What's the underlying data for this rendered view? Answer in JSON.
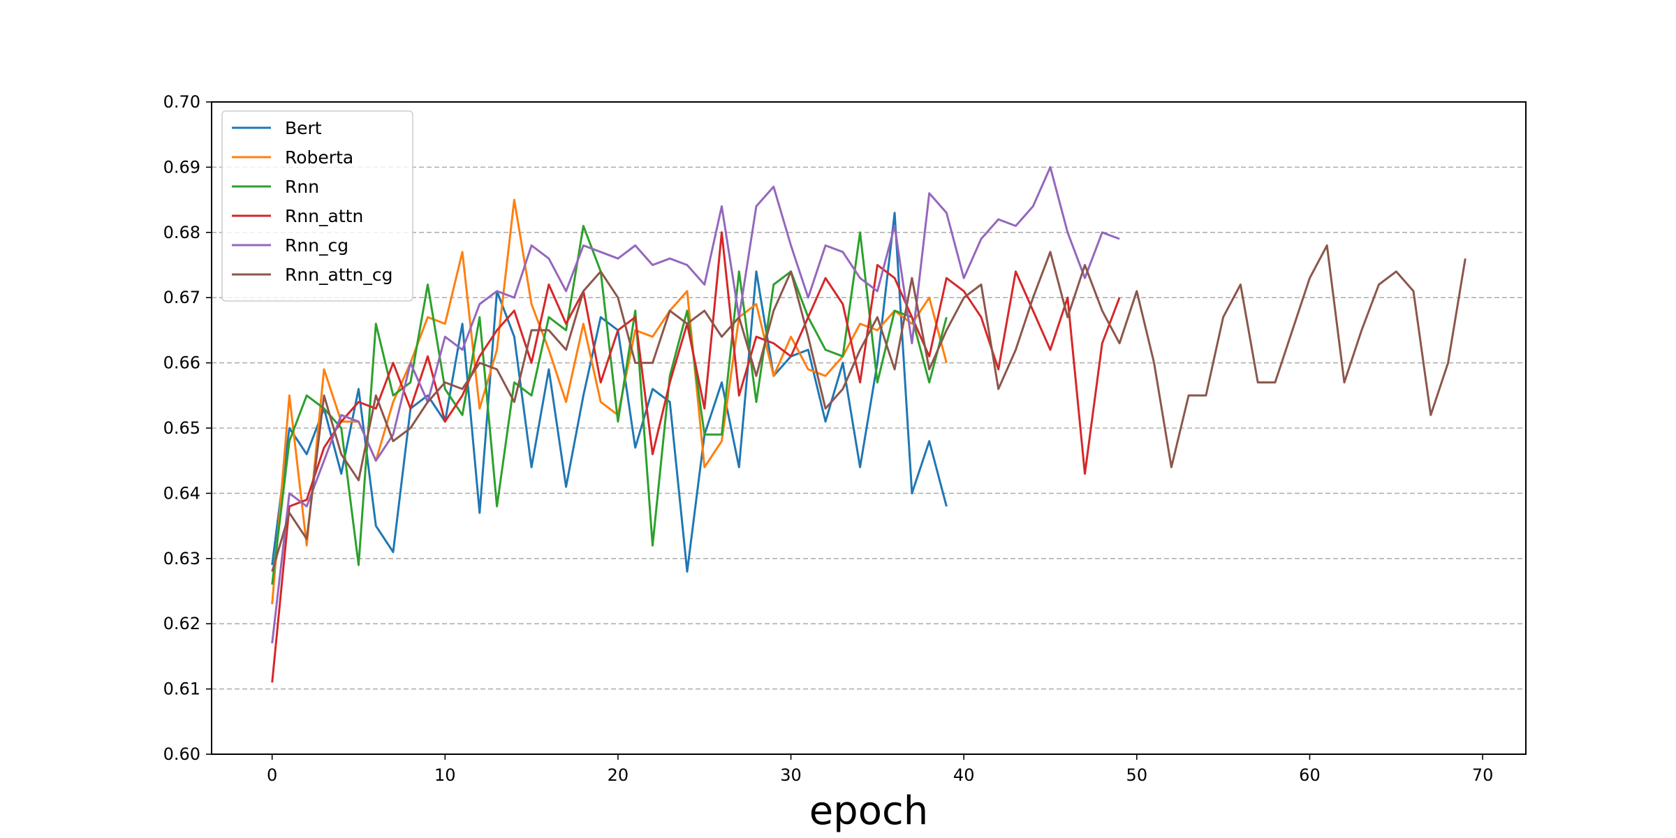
{
  "chart_data": {
    "type": "line",
    "title": "",
    "xlabel": "epoch",
    "ylabel": "",
    "xlim": [
      -3.5,
      72.5
    ],
    "ylim": [
      0.6,
      0.7
    ],
    "xticks": [
      0,
      10,
      20,
      30,
      40,
      50,
      60,
      70
    ],
    "yticks": [
      0.6,
      0.61,
      0.62,
      0.63,
      0.64,
      0.65,
      0.66,
      0.67,
      0.68,
      0.69,
      0.7
    ],
    "grid": "horizontal dashed",
    "legend_position": "top-left",
    "series": [
      {
        "name": "Bert",
        "color": "#1f77b4",
        "values": [
          0.629,
          0.65,
          0.646,
          0.653,
          0.643,
          0.656,
          0.635,
          0.631,
          0.653,
          0.655,
          0.651,
          0.666,
          0.637,
          0.671,
          0.664,
          0.644,
          0.659,
          0.641,
          0.655,
          0.667,
          0.665,
          0.647,
          0.656,
          0.654,
          0.628,
          0.649,
          0.657,
          0.644,
          0.674,
          0.658,
          0.661,
          0.662,
          0.651,
          0.66,
          0.644,
          0.66,
          0.683,
          0.64,
          0.648,
          0.638
        ]
      },
      {
        "name": "Roberta",
        "color": "#ff7f0e",
        "values": [
          0.623,
          0.655,
          0.632,
          0.659,
          0.651,
          0.651,
          0.645,
          0.654,
          0.66,
          0.667,
          0.666,
          0.677,
          0.653,
          0.662,
          0.685,
          0.669,
          0.662,
          0.654,
          0.666,
          0.654,
          0.652,
          0.665,
          0.664,
          0.668,
          0.671,
          0.644,
          0.648,
          0.667,
          0.669,
          0.658,
          0.664,
          0.659,
          0.658,
          0.661,
          0.666,
          0.665,
          0.668,
          0.666,
          0.67,
          0.66
        ]
      },
      {
        "name": "Rnn",
        "color": "#2ca02c",
        "values": [
          0.626,
          0.648,
          0.655,
          0.653,
          0.65,
          0.629,
          0.666,
          0.655,
          0.657,
          0.672,
          0.656,
          0.652,
          0.667,
          0.638,
          0.657,
          0.655,
          0.667,
          0.665,
          0.681,
          0.674,
          0.651,
          0.668,
          0.632,
          0.658,
          0.668,
          0.649,
          0.649,
          0.674,
          0.654,
          0.672,
          0.674,
          0.667,
          0.662,
          0.661,
          0.68,
          0.657,
          0.668,
          0.667,
          0.657,
          0.667
        ]
      },
      {
        "name": "Rnn_attn",
        "color": "#d62728",
        "values": [
          0.611,
          0.638,
          0.639,
          0.647,
          0.651,
          0.654,
          0.653,
          0.66,
          0.653,
          0.661,
          0.651,
          0.655,
          0.661,
          0.665,
          0.668,
          0.66,
          0.672,
          0.666,
          0.671,
          0.657,
          0.665,
          0.667,
          0.646,
          0.657,
          0.666,
          0.653,
          0.68,
          0.655,
          0.664,
          0.663,
          0.661,
          0.667,
          0.673,
          0.669,
          0.657,
          0.675,
          0.673,
          0.667,
          0.661,
          0.673,
          0.671,
          0.667,
          0.659,
          0.674,
          0.668,
          0.662,
          0.67,
          0.643,
          0.663,
          0.67
        ]
      },
      {
        "name": "Rnn_cg",
        "color": "#9467bd",
        "values": [
          0.617,
          0.64,
          0.638,
          0.645,
          0.652,
          0.651,
          0.645,
          0.649,
          0.66,
          0.654,
          0.664,
          0.662,
          0.669,
          0.671,
          0.67,
          0.678,
          0.676,
          0.671,
          0.678,
          0.677,
          0.676,
          0.678,
          0.675,
          0.676,
          0.675,
          0.672,
          0.684,
          0.667,
          0.684,
          0.687,
          0.678,
          0.67,
          0.678,
          0.677,
          0.673,
          0.671,
          0.681,
          0.663,
          0.686,
          0.683,
          0.673,
          0.679,
          0.682,
          0.681,
          0.684,
          0.69,
          0.68,
          0.673,
          0.68,
          0.679
        ]
      },
      {
        "name": "Rnn_attn_cg",
        "color": "#8c564b",
        "values": [
          0.628,
          0.637,
          0.633,
          0.655,
          0.646,
          0.642,
          0.655,
          0.648,
          0.65,
          0.654,
          0.657,
          0.656,
          0.66,
          0.659,
          0.654,
          0.665,
          0.665,
          0.662,
          0.671,
          0.674,
          0.67,
          0.66,
          0.66,
          0.668,
          0.666,
          0.668,
          0.664,
          0.667,
          0.658,
          0.668,
          0.674,
          0.664,
          0.653,
          0.656,
          0.662,
          0.667,
          0.659,
          0.673,
          0.659,
          0.665,
          0.67,
          0.672,
          0.656,
          0.662,
          0.67,
          0.677,
          0.667,
          0.675,
          0.668,
          0.663,
          0.671,
          0.66,
          0.644,
          0.655,
          0.655,
          0.667,
          0.672,
          0.657,
          0.657,
          0.665,
          0.673,
          0.678,
          0.657,
          0.665,
          0.672,
          0.674,
          0.671,
          0.652,
          0.66,
          0.676
        ]
      }
    ]
  }
}
